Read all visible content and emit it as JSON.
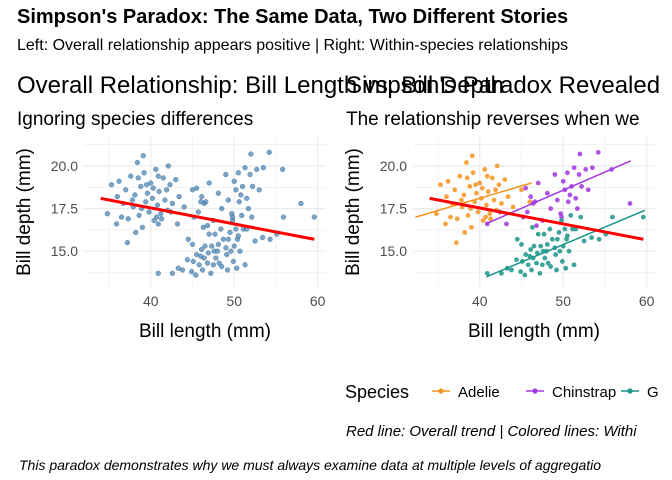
{
  "title": "Simpson's Paradox: The Same Data, Two Different Stories",
  "subtitle": "Left: Overall relationship appears positive | Right: Within-species relationships",
  "caption": "This paradox demonstrates why we must always examine data at multiple levels of aggregatio",
  "note": "Red line: Overall trend | Colored lines: Withi",
  "colors": {
    "points_overall": "#4f87b6",
    "overall_trend": "#ff0000",
    "Adelie": "#f5931e",
    "Chinstrap": "#a236e0",
    "Gentoo": "#1b948a",
    "grid": "#ebebeb"
  },
  "chart_data": [
    {
      "type": "scatter",
      "title": "Overall Relationship: Bill Length vs. Bill Depth",
      "subtitle": "Ignoring species differences",
      "xlabel": "Bill length (mm)",
      "ylabel": "Bill depth (mm)",
      "xlim": [
        32,
        61
      ],
      "ylim": [
        12.9,
        21.7
      ],
      "xticks": [
        40,
        50,
        60
      ],
      "yticks": [
        15.0,
        17.5,
        20.0
      ],
      "xticklabels": [
        "40",
        "50",
        "60"
      ],
      "yticklabels": [
        "15.0",
        "17.5",
        "20.0"
      ],
      "grid": true,
      "trend_line": {
        "x": [
          34,
          59.6
        ],
        "y": [
          18.1,
          15.7
        ]
      },
      "series": [
        {
          "group": "Adelie",
          "points": [
            [
              34.8,
              17.2
            ],
            [
              35.3,
              18.9
            ],
            [
              35.9,
              16.6
            ],
            [
              36.2,
              19.1
            ],
            [
              36.7,
              17.8
            ],
            [
              37.0,
              18.6
            ],
            [
              37.3,
              16.9
            ],
            [
              37.6,
              19.4
            ],
            [
              37.9,
              17.6
            ],
            [
              38.1,
              18.3
            ],
            [
              38.4,
              20.2
            ],
            [
              38.6,
              17.1
            ],
            [
              38.8,
              18.8
            ],
            [
              39.0,
              16.4
            ],
            [
              39.2,
              19.6
            ],
            [
              39.4,
              17.9
            ],
            [
              39.6,
              18.4
            ],
            [
              39.8,
              17.3
            ],
            [
              40.0,
              19.0
            ],
            [
              40.2,
              18.1
            ],
            [
              40.4,
              16.8
            ],
            [
              40.6,
              19.8
            ],
            [
              40.8,
              17.7
            ],
            [
              41.0,
              18.5
            ],
            [
              41.2,
              17.2
            ],
            [
              41.5,
              19.3
            ],
            [
              41.7,
              18.0
            ],
            [
              42.0,
              17.4
            ],
            [
              42.3,
              18.9
            ],
            [
              42.6,
              17.8
            ],
            [
              43.0,
              19.2
            ],
            [
              43.4,
              18.2
            ],
            [
              44.0,
              17.6
            ],
            [
              45.0,
              18.6
            ],
            [
              46.0,
              17.9
            ],
            [
              36.0,
              18.2
            ],
            [
              37.8,
              18.0
            ],
            [
              38.9,
              17.5
            ],
            [
              39.5,
              18.9
            ],
            [
              40.3,
              18.7
            ],
            [
              40.9,
              19.4
            ],
            [
              41.3,
              16.9
            ],
            [
              38.2,
              16.1
            ],
            [
              36.5,
              17.0
            ],
            [
              39.1,
              20.6
            ],
            [
              42.1,
              20.0
            ],
            [
              37.2,
              15.5
            ],
            [
              40.7,
              17.0
            ],
            [
              41.9,
              18.6
            ],
            [
              38.5,
              19.3
            ]
          ]
        },
        {
          "group": "Chinstrap",
          "points": [
            [
              40.9,
              16.6
            ],
            [
              42.4,
              17.3
            ],
            [
              43.2,
              16.6
            ],
            [
              45.2,
              17.0
            ],
            [
              45.7,
              17.3
            ],
            [
              46.1,
              18.2
            ],
            [
              46.4,
              17.8
            ],
            [
              46.8,
              16.5
            ],
            [
              47.0,
              19.0
            ],
            [
              47.5,
              16.8
            ],
            [
              48.1,
              18.4
            ],
            [
              48.5,
              17.5
            ],
            [
              49.0,
              19.5
            ],
            [
              49.3,
              18.0
            ],
            [
              49.7,
              17.2
            ],
            [
              50.0,
              19.1
            ],
            [
              50.2,
              18.6
            ],
            [
              50.5,
              19.6
            ],
            [
              50.8,
              18.3
            ],
            [
              51.0,
              18.8
            ],
            [
              51.3,
              19.9
            ],
            [
              51.5,
              18.1
            ],
            [
              51.9,
              19.5
            ],
            [
              52.0,
              20.7
            ],
            [
              52.2,
              18.8
            ],
            [
              52.7,
              19.8
            ],
            [
              53.0,
              18.6
            ],
            [
              53.5,
              19.9
            ],
            [
              54.2,
              20.8
            ],
            [
              55.8,
              19.8
            ],
            [
              58.0,
              17.8
            ],
            [
              46.6,
              17.9
            ],
            [
              49.8,
              17.0
            ],
            [
              51.7,
              17.5
            ],
            [
              45.5,
              18.7
            ],
            [
              50.6,
              17.9
            ]
          ]
        },
        {
          "group": "Gentoo",
          "points": [
            [
              40.9,
              13.7
            ],
            [
              42.6,
              13.7
            ],
            [
              43.3,
              14.0
            ],
            [
              43.8,
              13.9
            ],
            [
              44.4,
              14.5
            ],
            [
              44.9,
              13.8
            ],
            [
              45.1,
              14.4
            ],
            [
              45.4,
              13.6
            ],
            [
              45.5,
              14.8
            ],
            [
              45.8,
              14.2
            ],
            [
              46.1,
              15.1
            ],
            [
              46.2,
              13.9
            ],
            [
              46.4,
              14.6
            ],
            [
              46.5,
              15.3
            ],
            [
              46.8,
              14.3
            ],
            [
              46.9,
              14.9
            ],
            [
              47.2,
              13.7
            ],
            [
              47.3,
              15.3
            ],
            [
              47.5,
              14.2
            ],
            [
              47.6,
              15.0
            ],
            [
              47.8,
              14.6
            ],
            [
              48.1,
              15.4
            ],
            [
              48.2,
              14.3
            ],
            [
              48.4,
              16.3
            ],
            [
              48.5,
              14.1
            ],
            [
              48.7,
              15.7
            ],
            [
              49.0,
              15.2
            ],
            [
              49.1,
              14.8
            ],
            [
              49.3,
              15.7
            ],
            [
              49.5,
              16.1
            ],
            [
              49.6,
              15.0
            ],
            [
              49.8,
              16.8
            ],
            [
              50.0,
              15.3
            ],
            [
              50.2,
              16.3
            ],
            [
              50.4,
              15.7
            ],
            [
              50.5,
              15.9
            ],
            [
              50.7,
              15.0
            ],
            [
              50.9,
              17.1
            ],
            [
              51.1,
              16.3
            ],
            [
              51.3,
              14.2
            ],
            [
              51.5,
              16.3
            ],
            [
              52.1,
              17.0
            ],
            [
              52.5,
              15.6
            ],
            [
              53.4,
              15.8
            ],
            [
              54.3,
              15.7
            ],
            [
              55.1,
              16.0
            ],
            [
              55.9,
              17.0
            ],
            [
              59.6,
              17.0
            ],
            [
              45.0,
              15.4
            ],
            [
              46.0,
              14.7
            ],
            [
              47.0,
              16.0
            ],
            [
              48.0,
              15.0
            ],
            [
              49.2,
              13.9
            ],
            [
              44.5,
              15.7
            ],
            [
              46.3,
              16.4
            ],
            [
              47.7,
              16.0
            ],
            [
              49.9,
              14.4
            ],
            [
              50.3,
              14.0
            ]
          ]
        }
      ]
    },
    {
      "type": "scatter",
      "title": "Simpson's Paradox Revealed",
      "subtitle": "The relationship reverses when we",
      "xlabel": "Bill length (mm)",
      "ylabel": "Bill depth (mm)",
      "xlim": [
        32,
        61
      ],
      "ylim": [
        12.9,
        21.7
      ],
      "xticks": [
        40,
        50,
        60
      ],
      "yticks": [
        15.0,
        17.5,
        20.0
      ],
      "xticklabels": [
        "40",
        "50",
        "60"
      ],
      "yticklabels": [
        "15.0",
        "17.5",
        "20.0"
      ],
      "grid": true,
      "legend": {
        "title": "Species",
        "position": "bottom",
        "entries": [
          "Adelie",
          "Chinstrap",
          "G"
        ]
      },
      "overall_trend": {
        "x": [
          34,
          59.6
        ],
        "y": [
          18.1,
          15.7
        ]
      },
      "species_trends": [
        {
          "name": "Adelie",
          "x": [
            32.3,
            46.2
          ],
          "y": [
            17.0,
            19.0
          ]
        },
        {
          "name": "Chinstrap",
          "x": [
            40.7,
            58.1
          ],
          "y": [
            16.6,
            20.3
          ]
        },
        {
          "name": "Gentoo",
          "x": [
            40.8,
            59.8
          ],
          "y": [
            13.5,
            17.4
          ]
        }
      ]
    }
  ]
}
